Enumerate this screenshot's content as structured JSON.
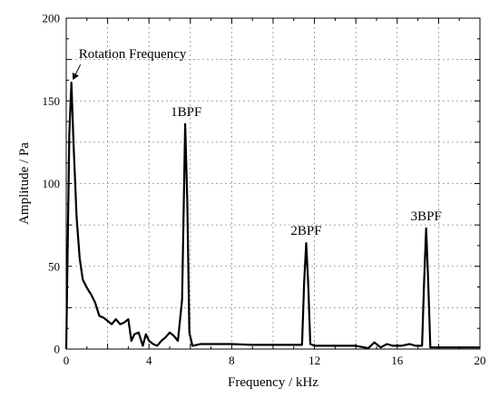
{
  "chart_data": {
    "type": "line",
    "title": "",
    "xlabel": "Frequency / kHz",
    "ylabel": "Amplitude / Pa",
    "xlim": [
      0,
      20
    ],
    "ylim": [
      0,
      200
    ],
    "xticks": [
      0,
      4,
      8,
      12,
      16,
      20
    ],
    "yticks": [
      0,
      50,
      100,
      150,
      200
    ],
    "grid": true,
    "legend": "none",
    "series": [
      {
        "x": [
          0,
          0.15,
          0.25,
          0.35,
          0.5,
          0.65,
          0.8,
          1.0,
          1.2,
          1.4,
          1.6,
          1.8,
          2.0,
          2.2,
          2.4,
          2.6,
          2.8,
          3.0,
          3.15,
          3.3,
          3.5,
          3.7,
          3.85,
          4.0,
          4.2,
          4.4,
          4.6,
          4.8,
          5.0,
          5.2,
          5.4,
          5.6,
          5.75,
          5.85,
          5.95,
          6.1,
          6.5,
          7.0,
          8.0,
          9.0,
          10.0,
          11.0,
          11.4,
          11.5,
          11.6,
          11.7,
          11.8,
          12.0,
          13.0,
          14.0,
          14.6,
          14.9,
          15.2,
          15.5,
          15.8,
          16.2,
          16.6,
          16.9,
          17.2,
          17.3,
          17.4,
          17.5,
          17.6,
          18.0,
          19.0,
          20.0
        ],
        "y": [
          0,
          130,
          161,
          125,
          80,
          55,
          42,
          37,
          33,
          28,
          20,
          19,
          17,
          15,
          18,
          15,
          16,
          18,
          5,
          9,
          10,
          2,
          9,
          5,
          3,
          2,
          5,
          7,
          10,
          8,
          5,
          30,
          136,
          90,
          10,
          2,
          3,
          3,
          3,
          2.5,
          2.5,
          2.5,
          2.5,
          40,
          64,
          38,
          3,
          2,
          2,
          2,
          0.5,
          4,
          1,
          3,
          2,
          2,
          3,
          2,
          2,
          40,
          73,
          40,
          1,
          1,
          1,
          1
        ]
      }
    ],
    "annotations": [
      {
        "text": "Rotation Frequency",
        "x": 0.25,
        "y": 161,
        "arrow": true
      },
      {
        "text": "1BPF",
        "x": 5.8,
        "y": 136
      },
      {
        "text": "2BPF",
        "x": 11.6,
        "y": 64
      },
      {
        "text": "3BPF",
        "x": 17.4,
        "y": 73
      }
    ]
  }
}
